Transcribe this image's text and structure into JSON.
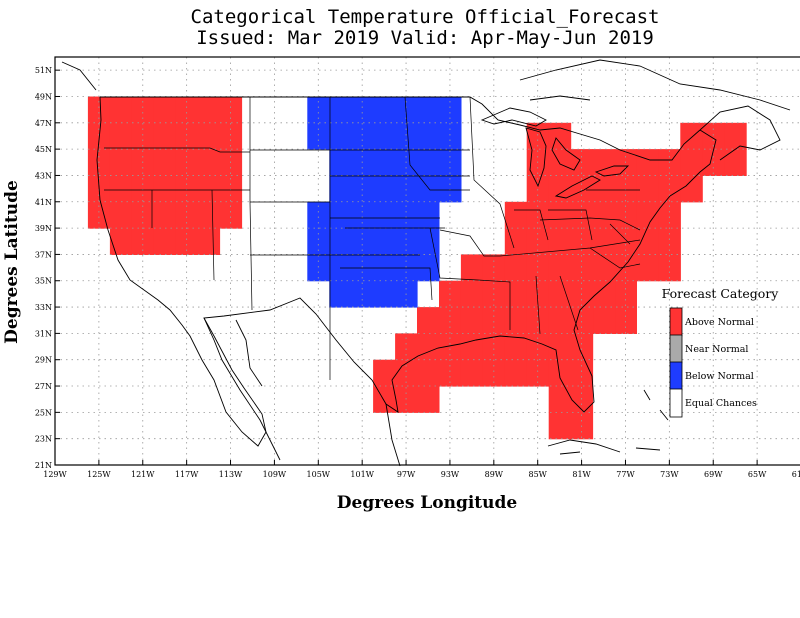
{
  "title": {
    "line1": "Categorical Temperature Official_Forecast",
    "line2": "Issued: Mar 2019 Valid: Apr-May-Jun 2019"
  },
  "axes": {
    "xlabel": "Degrees Longitude",
    "ylabel": "Degrees Latitude",
    "lon_ticks": [
      "129W",
      "125W",
      "121W",
      "117W",
      "113W",
      "109W",
      "105W",
      "101W",
      "97W",
      "93W",
      "89W",
      "85W",
      "81W",
      "77W",
      "73W",
      "69W",
      "65W",
      "61W"
    ],
    "lat_ticks": [
      "51N",
      "49N",
      "47N",
      "45N",
      "43N",
      "41N",
      "39N",
      "37N",
      "35N",
      "33N",
      "31N",
      "29N",
      "27N",
      "25N",
      "23N",
      "21N"
    ],
    "lon_range": [
      -129,
      -61
    ],
    "lat_range": [
      21,
      52
    ],
    "grid": "dotted"
  },
  "legend": {
    "title": "Forecast Category",
    "placement": "right",
    "items": [
      {
        "label": "Above Normal",
        "color": "#ff3333"
      },
      {
        "label": "Near Normal",
        "color": "#aaaaaa"
      },
      {
        "label": "Below Normal",
        "color": "#1e3cff"
      },
      {
        "label": "Equal Chances",
        "color": "#ffffff"
      }
    ]
  },
  "chart_data": {
    "type": "heatmap",
    "cell_size_deg": 2,
    "categories": [
      "Above Normal",
      "Below Normal"
    ],
    "cells": [
      {
        "category": "Above Normal",
        "lon": [
          -125,
          -123,
          -121,
          -119,
          -117,
          -115,
          -113
        ],
        "lat": [
          48,
          46,
          44,
          42,
          40
        ]
      },
      {
        "category": "Above Normal",
        "lon": [
          -123,
          -121,
          -119,
          -117,
          -115
        ],
        "lat": [
          38
        ]
      },
      {
        "category": "Above Normal",
        "lon": [
          -87,
          -85,
          -83,
          -81,
          -79,
          -77,
          -75,
          -73
        ],
        "lat": [
          40,
          38,
          36
        ]
      },
      {
        "category": "Above Normal",
        "lon": [
          -91,
          -89,
          -87,
          -85,
          -83,
          -81,
          -79,
          -77
        ],
        "lat": [
          36,
          34,
          32
        ]
      },
      {
        "category": "Above Normal",
        "lon": [
          -93,
          -91,
          -89,
          -87,
          -85,
          -83,
          -81,
          -79
        ],
        "lat": [
          34,
          32
        ]
      },
      {
        "category": "Above Normal",
        "lon": [
          -95,
          -93,
          -91,
          -89,
          -87,
          -85,
          -83,
          -81
        ],
        "lat": [
          32,
          30
        ]
      },
      {
        "category": "Above Normal",
        "lon": [
          -97,
          -95,
          -93,
          -91,
          -89,
          -87,
          -85,
          -83,
          -81
        ],
        "lat": [
          30,
          28
        ]
      },
      {
        "category": "Above Normal",
        "lon": [
          -99,
          -97,
          -95
        ],
        "lat": [
          28,
          26
        ]
      },
      {
        "category": "Above Normal",
        "lon": [
          -83,
          -81
        ],
        "lat": [
          26,
          24
        ]
      },
      {
        "category": "Above Normal",
        "lon": [
          -85,
          -83
        ],
        "lat": [
          46,
          44,
          42
        ]
      },
      {
        "category": "Above Normal",
        "lon": [
          -81,
          -79,
          -77,
          -75,
          -73,
          -71
        ],
        "lat": [
          44,
          42
        ]
      },
      {
        "category": "Above Normal",
        "lon": [
          -71,
          -69,
          -67
        ],
        "lat": [
          46,
          44
        ]
      },
      {
        "category": "Below Normal",
        "lon": [
          -105,
          -103,
          -101,
          -99,
          -97,
          -95,
          -93
        ],
        "lat": [
          48,
          46
        ]
      },
      {
        "category": "Below Normal",
        "lon": [
          -103,
          -101,
          -99,
          -97,
          -95,
          -93
        ],
        "lat": [
          44,
          42
        ]
      },
      {
        "category": "Below Normal",
        "lon": [
          -105,
          -103,
          -101,
          -99,
          -97,
          -95
        ],
        "lat": [
          40,
          38,
          36
        ]
      },
      {
        "category": "Below Normal",
        "lon": [
          -103,
          -101,
          -99,
          -97
        ],
        "lat": [
          34
        ]
      }
    ]
  }
}
